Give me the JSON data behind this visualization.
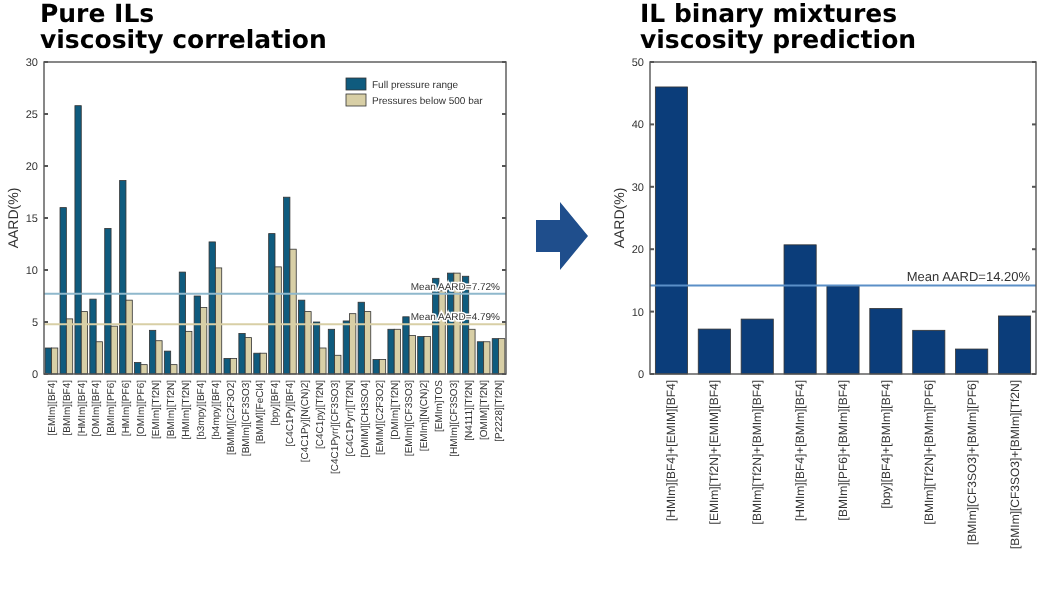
{
  "chart_data": [
    {
      "type": "bar",
      "title": "Pure ILs\nviscosity correlation",
      "ylabel": "AARD(%)",
      "categories": [
        "[EMIm][BF4]",
        "[BMIm][BF4]",
        "[HMIm][BF4]",
        "[OMIm][BF4]",
        "[BMIm][PF6]",
        "[HMIm][PF6]",
        "[OMIm][PF6]",
        "[EMIm][Tf2N]",
        "[BMIm][Tf2N]",
        "[HMIm][Tf2N]",
        "[b3mpy][BF4]",
        "[b4mpy][BF4]",
        "[BMIM][C2F3O2]",
        "[BMIm][CF3SO3]",
        "[BMIM][FeCl4]",
        "[bpy][BF4]",
        "[C4C1Py][BF4]",
        "[C4C1Py][N(CN)2]",
        "[C4C1py][Tf2N]",
        "[C4C1Pyrr][CF3SO3]",
        "[C4C1Pyrr][Tf2N]",
        "[DMIM][CH3SO4]",
        "[EMIM][C2F3O2]",
        "[DMIm][Tf2N]",
        "[EMIm][CF3SO3]",
        "[EMIm][N(CN)2]",
        "[EMIm]TOS",
        "[HMIm][CF3SO3]",
        "[N4111][Tf2N]",
        "[OMIM][Tf2N]",
        "[P2228][Tf2N]"
      ],
      "series": [
        {
          "name": "Full pressure range",
          "color": "#0f5b7e",
          "values": [
            2.5,
            16,
            25.8,
            7.2,
            14,
            18.6,
            1.1,
            4.2,
            2.2,
            9.8,
            7.5,
            12.7,
            1.5,
            3.9,
            2,
            13.5,
            17,
            7.1,
            5,
            4.3,
            5.1,
            6.9,
            1.4,
            4.3,
            5.5,
            3.6,
            9.2,
            9.7,
            9.4,
            3.1,
            3.4
          ]
        },
        {
          "name": "Pressures below 500 bar",
          "color": "#d8cfa6",
          "values": [
            2.5,
            5.3,
            6,
            3.1,
            4.6,
            7.1,
            0.9,
            3.2,
            0.9,
            4.1,
            6.4,
            10.2,
            1.5,
            3.5,
            2,
            10.3,
            12,
            6,
            2.5,
            1.8,
            5.8,
            6,
            1.4,
            4.3,
            3.7,
            3.6,
            8,
            9.7,
            4.3,
            3.1,
            3.4
          ]
        }
      ],
      "ylim": [
        0,
        30
      ],
      "yticks": [
        0,
        5,
        10,
        15,
        20,
        25,
        30
      ],
      "legend": "top right",
      "ref_lines": [
        {
          "axis": "y",
          "value": 7.72,
          "label": "Mean AARD=7.72%",
          "color": "#8fb8cc"
        },
        {
          "axis": "y",
          "value": 4.79,
          "label": "Mean AARD=4.79%",
          "color": "#d8cfa6"
        }
      ]
    },
    {
      "type": "bar",
      "title": "IL binary mixtures\nviscosity prediction",
      "ylabel": "AARD(%)",
      "categories": [
        "[HMIm][BF4]+[EMIM][BF4]",
        "[EMIm][Tf2N]+[EMIM][BF4]",
        "[BMIm][Tf2N]+[BMIm][BF4]",
        "[HMIm][BF4]+[BMIm][BF4]",
        "[BMIm][PF6]+[BMIm][BF4]",
        "[bpy][BF4]+[BMIm][BF4]",
        "[BMIm][Tf2N]+[BMIm][PF6]",
        "[BMIm][CF3SO3]+[BMIm][PF6]",
        "[BMIm][CF3SO3]+[BMIm][Tf2N]"
      ],
      "series": [
        {
          "color": "#0b3d7a",
          "values": [
            46,
            7.2,
            8.8,
            20.7,
            14.1,
            10.5,
            7,
            4,
            9.3
          ]
        }
      ],
      "ylim": [
        0,
        50
      ],
      "yticks": [
        0,
        10,
        20,
        30,
        40,
        50
      ],
      "ref_lines": [
        {
          "axis": "y",
          "value": 14.2,
          "label": "Mean AARD=14.20%",
          "color": "#5b8fc7"
        }
      ]
    }
  ]
}
